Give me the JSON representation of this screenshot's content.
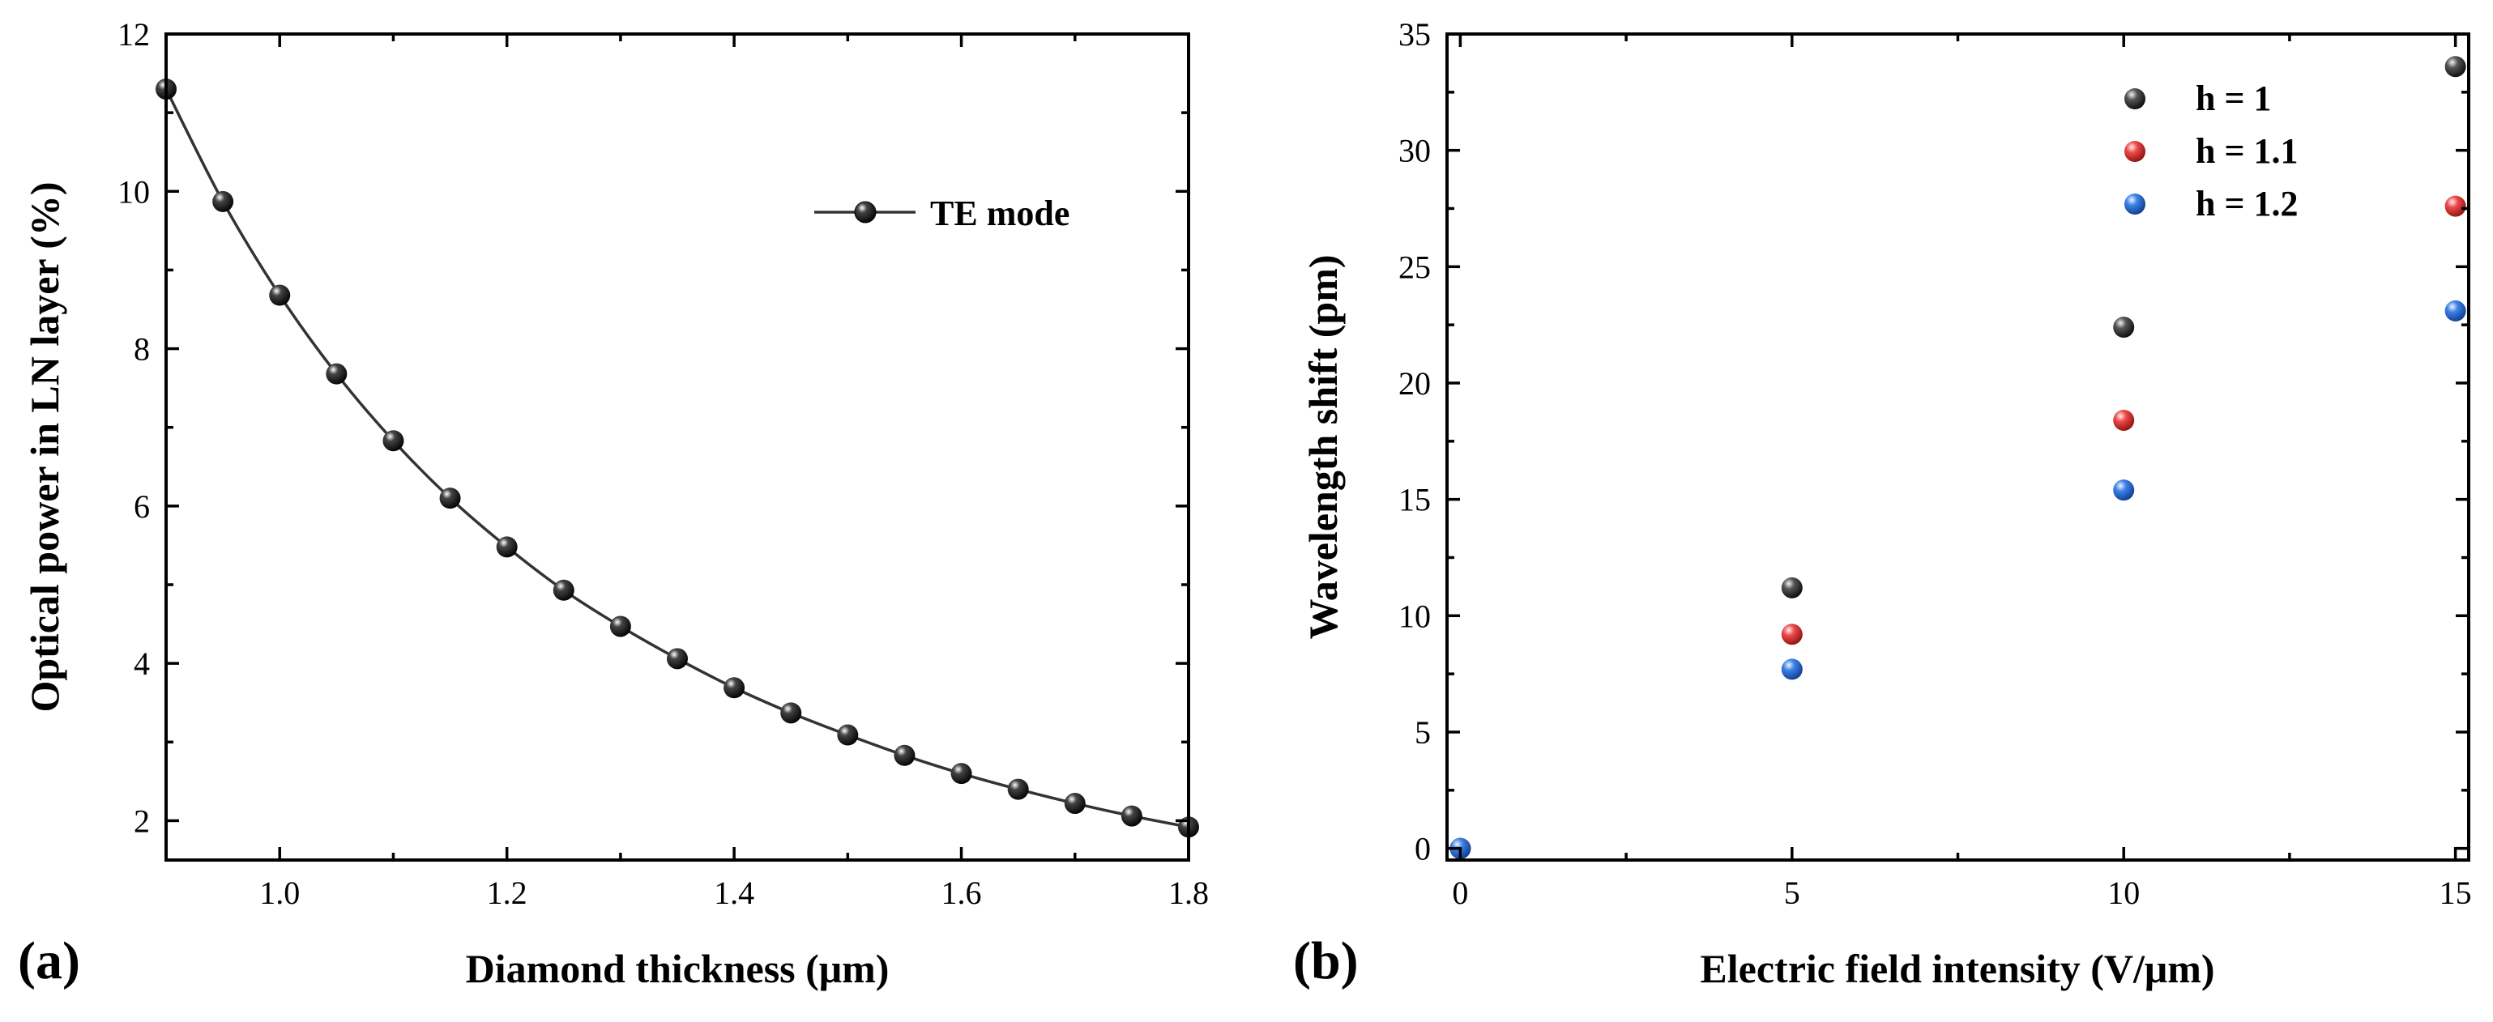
{
  "chart_data": [
    {
      "panel_label": "(a)",
      "type": "line",
      "xlabel": "Diamond thickness (μm)",
      "ylabel": "Optical power in LN layer (%)",
      "xlim": [
        0.9,
        1.8
      ],
      "ylim": [
        1.5,
        12
      ],
      "xticks": [
        1.0,
        1.2,
        1.4,
        1.6,
        1.8
      ],
      "xtick_labels": [
        "1.0",
        "1.2",
        "1.4",
        "1.6",
        "1.8"
      ],
      "yticks": [
        2,
        4,
        6,
        8,
        10,
        12
      ],
      "ytick_labels": [
        "2",
        "4",
        "6",
        "8",
        "10",
        "12"
      ],
      "legend_location": "upper-right",
      "series": [
        {
          "name": "TE mode",
          "color": "#333333",
          "x": [
            0.9,
            0.95,
            1.0,
            1.05,
            1.1,
            1.15,
            1.2,
            1.25,
            1.3,
            1.35,
            1.4,
            1.45,
            1.5,
            1.55,
            1.6,
            1.65,
            1.7,
            1.75,
            1.8
          ],
          "y": [
            11.3,
            9.87,
            8.68,
            7.68,
            6.83,
            6.1,
            5.48,
            4.93,
            4.47,
            4.06,
            3.69,
            3.37,
            3.09,
            2.83,
            2.6,
            2.4,
            2.22,
            2.06,
            1.92
          ]
        }
      ]
    },
    {
      "panel_label": "(b)",
      "type": "scatter",
      "xlabel": "Electric field intensity (V/μm)",
      "ylabel": "Wavelength shift (pm)",
      "xlim": [
        -0.2,
        15.2
      ],
      "ylim": [
        -0.5,
        35
      ],
      "xticks": [
        0,
        5,
        10,
        15
      ],
      "xtick_labels": [
        "0",
        "5",
        "10",
        "15"
      ],
      "yticks": [
        0,
        5,
        10,
        15,
        20,
        25,
        30,
        35
      ],
      "ytick_labels": [
        "0",
        "5",
        "10",
        "15",
        "20",
        "25",
        "30",
        "35"
      ],
      "legend_location": "upper-right",
      "series": [
        {
          "name": "h = 1",
          "color": "#3c3c3c",
          "x": [
            0,
            5,
            10,
            15
          ],
          "y": [
            0,
            11.2,
            22.4,
            33.6
          ]
        },
        {
          "name": "h = 1.1",
          "color": "#e23b3b",
          "x": [
            0,
            5,
            10,
            15
          ],
          "y": [
            0,
            9.2,
            18.4,
            27.6
          ]
        },
        {
          "name": "h = 1.2",
          "color": "#2f6fd6",
          "x": [
            0,
            5,
            10,
            15
          ],
          "y": [
            0,
            7.7,
            15.4,
            23.1
          ]
        }
      ]
    }
  ]
}
